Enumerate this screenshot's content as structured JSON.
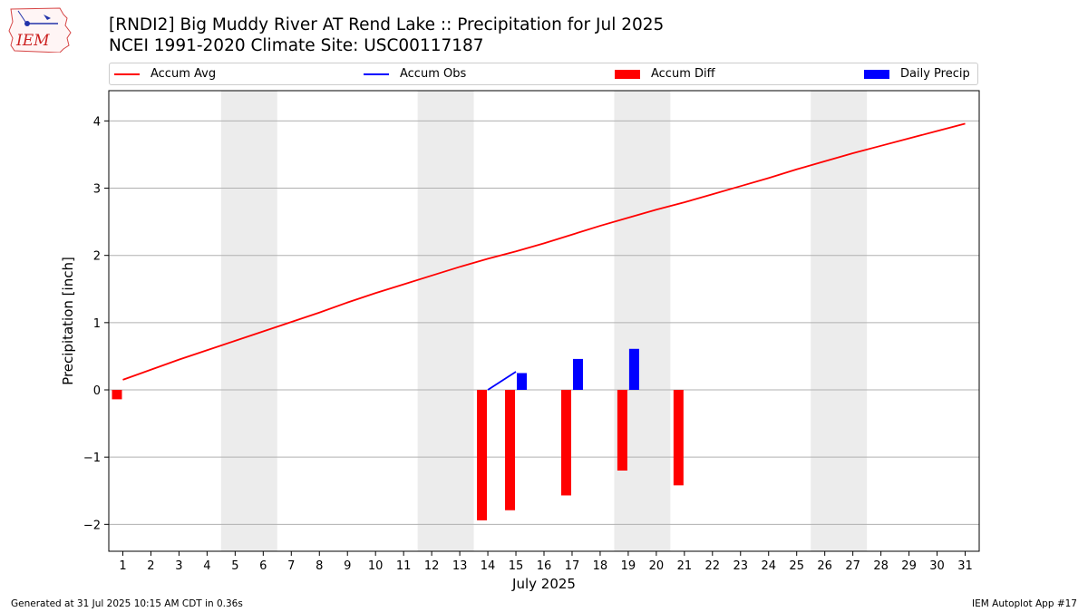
{
  "header": {
    "logo_text": "IEM",
    "title_line1": "[RNDI2] Big Muddy River  AT Rend Lake :: Precipitation for Jul 2025",
    "title_line2": "NCEI 1991-2020 Climate Site: USC00117187"
  },
  "footer": {
    "generated": "Generated at 31 Jul 2025 10:15 AM CDT in 0.36s",
    "app": "IEM Autoplot App #17"
  },
  "colors": {
    "accum_avg": "#ff0000",
    "accum_obs": "#0000ff",
    "accum_diff": "#ff0000",
    "daily_precip": "#0000ff",
    "weekend_shade": "#ececec",
    "grid": "#b0b0b0"
  },
  "chart_data": {
    "type": "bar",
    "xlabel": "July 2025",
    "ylabel": "Precipitation [inch]",
    "xlim": [
      0.5,
      31.5
    ],
    "ylim": [
      -2.4,
      4.45
    ],
    "yticks": [
      -2,
      -1,
      0,
      1,
      2,
      3,
      4
    ],
    "ytick_labels": [
      "−2",
      "−1",
      "0",
      "1",
      "2",
      "3",
      "4"
    ],
    "xticks": [
      1,
      2,
      3,
      4,
      5,
      6,
      7,
      8,
      9,
      10,
      11,
      12,
      13,
      14,
      15,
      16,
      17,
      18,
      19,
      20,
      21,
      22,
      23,
      24,
      25,
      26,
      27,
      28,
      29,
      30,
      31
    ],
    "grid": "horizontal",
    "legend_position": "top",
    "weekend_spans": [
      [
        4.5,
        6.5
      ],
      [
        11.5,
        13.5
      ],
      [
        18.5,
        20.5
      ],
      [
        25.5,
        27.5
      ]
    ],
    "series": [
      {
        "name": "Accum Avg",
        "kind": "line",
        "x": [
          1,
          2,
          3,
          4,
          5,
          6,
          7,
          8,
          9,
          10,
          11,
          12,
          13,
          14,
          15,
          16,
          17,
          18,
          19,
          20,
          21,
          22,
          23,
          24,
          25,
          26,
          27,
          28,
          29,
          30,
          31
        ],
        "values": [
          0.15,
          0.3,
          0.45,
          0.59,
          0.73,
          0.87,
          1.01,
          1.15,
          1.3,
          1.44,
          1.57,
          1.7,
          1.83,
          1.95,
          2.06,
          2.18,
          2.31,
          2.44,
          2.56,
          2.68,
          2.79,
          2.91,
          3.03,
          3.15,
          3.28,
          3.4,
          3.52,
          3.63,
          3.74,
          3.85,
          3.96
        ]
      },
      {
        "name": "Accum Obs",
        "kind": "line",
        "x": [
          14,
          15
        ],
        "values": [
          0.0,
          0.27
        ]
      },
      {
        "name": "Accum Diff",
        "kind": "bar",
        "x": [
          1,
          14,
          15,
          17,
          19,
          21
        ],
        "values": [
          -0.14,
          -1.94,
          -1.79,
          -1.57,
          -1.2,
          -1.42
        ]
      },
      {
        "name": "Daily Precip",
        "kind": "bar",
        "x": [
          15,
          17,
          19
        ],
        "values": [
          0.25,
          0.46,
          0.61
        ]
      }
    ]
  }
}
